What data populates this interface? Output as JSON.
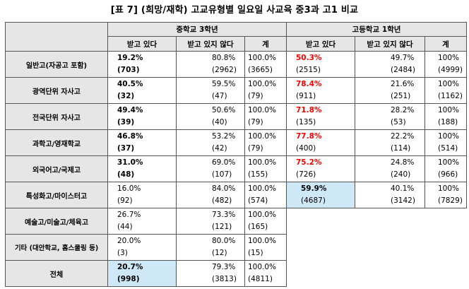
{
  "title": "[표 7] (희망/재학) 고교유형별 일요일 사교육 중3과 고1 비교",
  "groups": [
    "중학교 3학년",
    "고등학교 1학년"
  ],
  "subheaders": [
    "받고 있다",
    "받고 있지 않다",
    "계",
    "받고 있다",
    "받고 있지 않다",
    "계"
  ],
  "rows": [
    {
      "label": "일반고(자공고 포함)",
      "m_yes": "19.2%",
      "m_yes_n": "(703)",
      "m_no": "80.8%",
      "m_no_n": "(2962)",
      "m_tot": "100.0%",
      "m_tot_n": "(3665)",
      "h_yes": "50.3%",
      "h_yes_n": "(2515)",
      "h_no": "49.7%",
      "h_no_n": "(2484)",
      "h_tot": "100%",
      "h_tot_n": "(4999)"
    },
    {
      "label": "광역단위 자사고",
      "m_yes": "40.5%",
      "m_yes_n": "(32)",
      "m_no": "59.5%",
      "m_no_n": "(47)",
      "m_tot": "100.0%",
      "m_tot_n": "(79)",
      "h_yes": "78.4%",
      "h_yes_n": "(911)",
      "h_no": "21.6%",
      "h_no_n": "(251)",
      "h_tot": "100%",
      "h_tot_n": "(1162)"
    },
    {
      "label": "전국단위 자사고",
      "m_yes": "49.4%",
      "m_yes_n": "(39)",
      "m_no": "50.6%",
      "m_no_n": "(40)",
      "m_tot": "100.0%",
      "m_tot_n": "(79)",
      "h_yes": "71.8%",
      "h_yes_n": "(135)",
      "h_no": "28.2%",
      "h_no_n": "(53)",
      "h_tot": "100%",
      "h_tot_n": "(188)"
    },
    {
      "label": "과학고/영재학교",
      "m_yes": "46.8%",
      "m_yes_n": "(37)",
      "m_no": "53.2%",
      "m_no_n": "(42)",
      "m_tot": "100.0%",
      "m_tot_n": "(79)",
      "h_yes": "77.8%",
      "h_yes_n": "(400)",
      "h_no": "22.2%",
      "h_no_n": "(114)",
      "h_tot": "100%",
      "h_tot_n": "(514)"
    },
    {
      "label": "외국어고/국제고",
      "m_yes": "31.0%",
      "m_yes_n": "(48)",
      "m_no": "69.0%",
      "m_no_n": "(107)",
      "m_tot": "100.0%",
      "m_tot_n": "(155)",
      "h_yes": "75.2%",
      "h_yes_n": "(726)",
      "h_no": "24.8%",
      "h_no_n": "(240)",
      "h_tot": "100%",
      "h_tot_n": "(966)"
    },
    {
      "label": "특성화고/마이스터고",
      "m_yes": "16.0%",
      "m_yes_n": "(92)",
      "m_no": "84.0%",
      "m_no_n": "(482)",
      "m_tot": "100.0%",
      "m_tot_n": "(574)",
      "h_yes": "59.9%",
      "h_yes_n": "(4687)",
      "h_no": "40.1%",
      "h_no_n": "(3142)",
      "h_tot": "100%",
      "h_tot_n": "(7829)"
    },
    {
      "label": "예술고/미술고/체육고",
      "m_yes": "26.7%",
      "m_yes_n": "(44)",
      "m_no": "73.3%",
      "m_no_n": "(121)",
      "m_tot": "100.0%",
      "m_tot_n": "(165)"
    },
    {
      "label": "기타 (대안학교, 홈스쿨링 등)",
      "m_yes": "20.0%",
      "m_yes_n": "(3)",
      "m_no": "80.0%",
      "m_no_n": "(12)",
      "m_tot": "100.0%",
      "m_tot_n": "(15)"
    },
    {
      "label": "전체",
      "m_yes": "20.7%",
      "m_yes_n": "(998)",
      "m_no": "79.3%",
      "m_no_n": "(3813)",
      "m_tot": "100.0%",
      "m_tot_n": "(4811)"
    }
  ]
}
